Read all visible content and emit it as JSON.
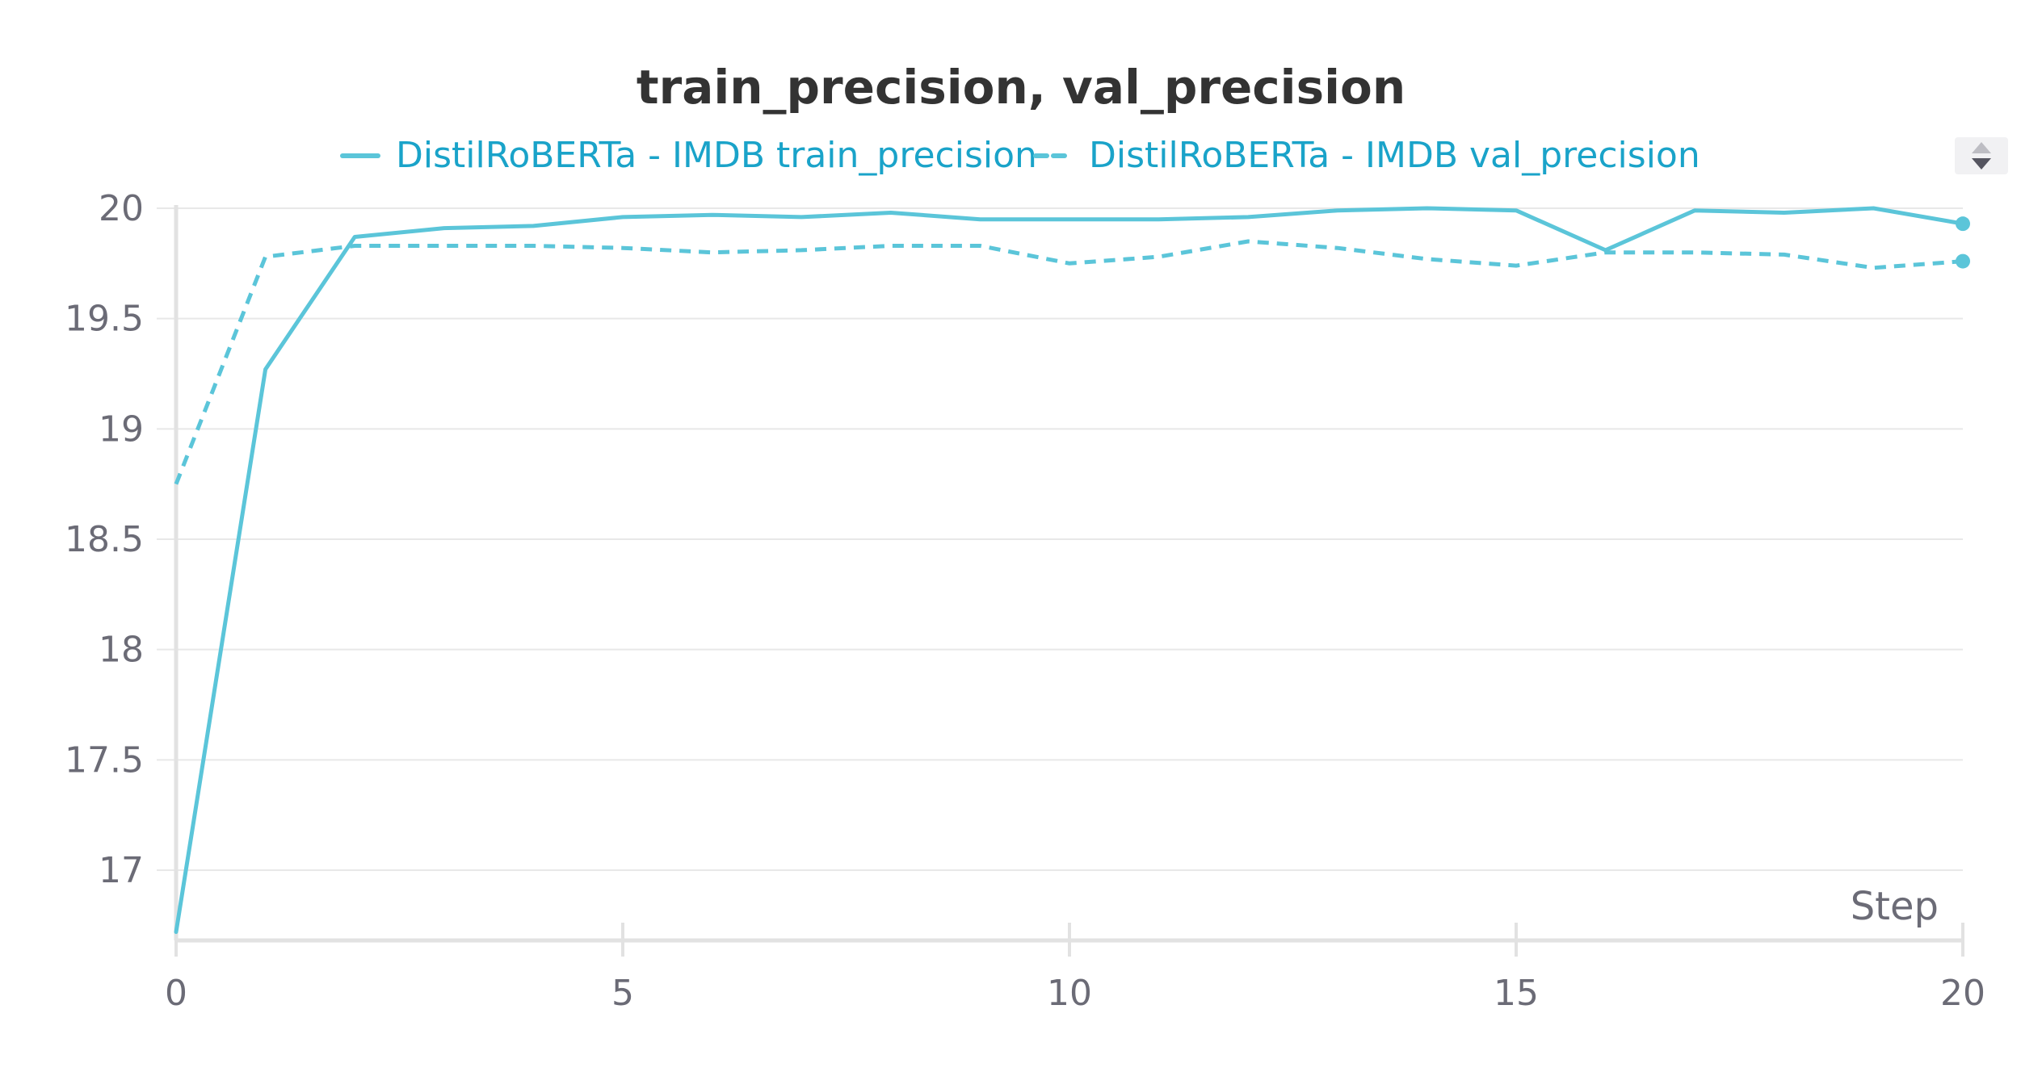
{
  "chart_data": {
    "type": "line",
    "title": "train_precision, val_precision",
    "xlabel": "Step",
    "ylabel": "",
    "xlim": [
      0,
      20
    ],
    "ylim": [
      16.7,
      20.0
    ],
    "x_ticks": [
      "0",
      "5",
      "10",
      "15",
      "20"
    ],
    "y_ticks": [
      "17",
      "17.5",
      "18",
      "18.5",
      "19",
      "19.5",
      "20"
    ],
    "grid": true,
    "legend_position": "top",
    "x": [
      0,
      1,
      2,
      3,
      4,
      5,
      6,
      7,
      8,
      9,
      10,
      11,
      12,
      13,
      14,
      15,
      16,
      17,
      18,
      19,
      20
    ],
    "series": [
      {
        "name": "DistilRoBERTa - IMDB train_precision",
        "style": "solid",
        "color": "#5bc5d9",
        "values": [
          16.72,
          19.27,
          19.87,
          19.91,
          19.92,
          19.96,
          19.97,
          19.96,
          19.98,
          19.95,
          19.95,
          19.95,
          19.96,
          19.99,
          20.0,
          19.99,
          19.81,
          19.99,
          19.98,
          20.0,
          19.93
        ]
      },
      {
        "name": "DistilRoBERTa - IMDB val_precision",
        "style": "dashed",
        "color": "#5bc5d9",
        "values": [
          18.75,
          19.78,
          19.83,
          19.83,
          19.83,
          19.82,
          19.8,
          19.81,
          19.83,
          19.83,
          19.75,
          19.78,
          19.85,
          19.82,
          19.77,
          19.74,
          19.8,
          19.8,
          19.79,
          19.73,
          19.76
        ]
      }
    ]
  },
  "colors": {
    "series": "#5bc5d9",
    "legend_text": "#1aa3c9",
    "grid": "#e8e8e8",
    "axis": "#e2e2e2",
    "tick_text": "#6b6b76",
    "title": "#333333"
  },
  "icons": {
    "scroll_control": "up-down-arrows-icon"
  }
}
